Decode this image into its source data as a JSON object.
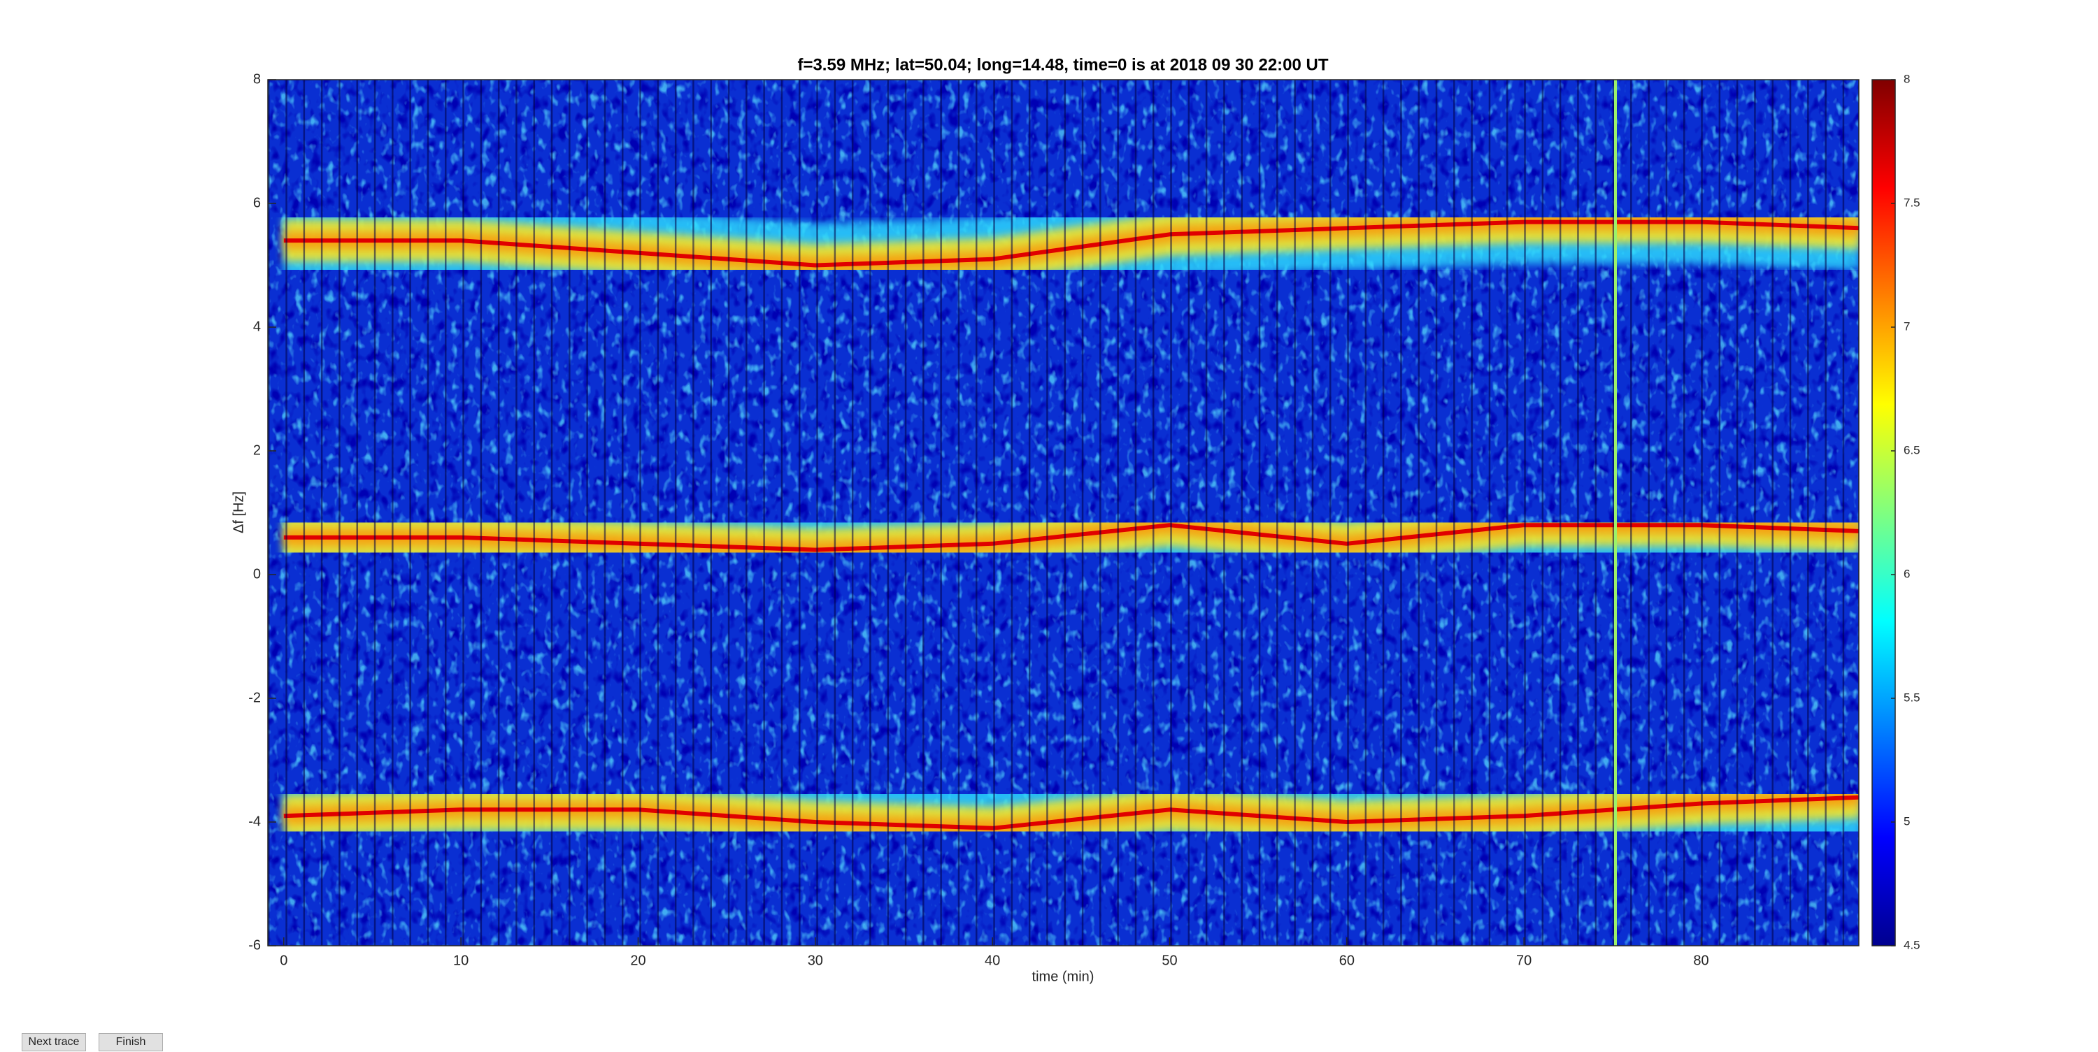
{
  "buttons": [
    "Next trace",
    "Finish"
  ],
  "chart_data": {
    "type": "line",
    "title": "f=3.59 MHz;  lat=50.04; long=14.48, time=0 is at 2018 09 30 22:00 UT",
    "x_label": "time (min)",
    "y_label": "Δf [Hz]",
    "x": [
      0,
      10,
      20,
      30,
      40,
      50,
      60,
      70,
      80,
      89
    ],
    "series": [
      {
        "color": "#e00000",
        "values": [
          5.4,
          5.4,
          5.2,
          5.0,
          5.1,
          5.5,
          5.6,
          5.7,
          5.7,
          5.6
        ]
      },
      {
        "color": "#e00000",
        "values": [
          0.6,
          0.6,
          0.5,
          0.4,
          0.5,
          0.8,
          0.5,
          0.8,
          0.8,
          0.7
        ]
      },
      {
        "color": "#e00000",
        "values": [
          -3.9,
          -3.8,
          -3.8,
          -4.0,
          -4.1,
          -3.8,
          -4.0,
          -3.9,
          -3.7,
          -3.6
        ]
      }
    ],
    "xlim": [
      -0.9,
      88.9
    ],
    "xticks": [
      0,
      10,
      20,
      30,
      40,
      50,
      60,
      70,
      80
    ],
    "ylim": [
      -6,
      8
    ],
    "yticks": [
      -6,
      -4,
      -2,
      0,
      2,
      4,
      6,
      8
    ],
    "colorbar": {
      "lim": [
        4.5,
        8
      ],
      "ticks": [
        4.5,
        5,
        5.5,
        6,
        6.5,
        7,
        7.5,
        8
      ]
    }
  }
}
